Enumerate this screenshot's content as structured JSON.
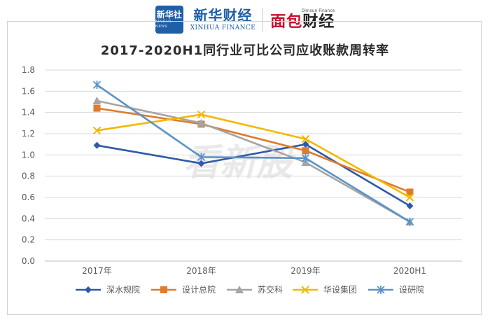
{
  "header": {
    "xinhua_badge_cn": "新华社",
    "xinhua_badge_en": "XINHUA NEWS",
    "xinhua_finance_cn": "新华财经",
    "xinhua_finance_en": "XINHUA FINANCE",
    "db_en": "Dimsun Finance",
    "db_cn_prefix": "面包",
    "db_cn_suffix": "财经"
  },
  "watermark": "看新股",
  "colors": {
    "深水规院": "#2e5aa8",
    "设计总院": "#e07a2c",
    "苏交科": "#a5a5a5",
    "华设集团": "#f2b800",
    "设研院": "#5b93c8"
  },
  "chart_data": {
    "type": "line",
    "title": "2017-2020H1同行业可比公司应收账款周转率",
    "categories": [
      "2017年",
      "2018年",
      "2019年",
      "2020H1"
    ],
    "ylim": [
      0.0,
      1.8
    ],
    "yticks": [
      "0.0",
      "0.2",
      "0.4",
      "0.6",
      "0.8",
      "1.0",
      "1.2",
      "1.4",
      "1.6",
      "1.8"
    ],
    "grid": true,
    "legend_position": "bottom",
    "series": [
      {
        "name": "深水规院",
        "values": [
          1.09,
          0.92,
          1.1,
          0.52
        ],
        "marker": "diamond"
      },
      {
        "name": "设计总院",
        "values": [
          1.44,
          1.29,
          1.04,
          0.65
        ],
        "marker": "square"
      },
      {
        "name": "苏交科",
        "values": [
          1.51,
          1.3,
          0.93,
          0.37
        ],
        "marker": "triangle"
      },
      {
        "name": "华设集团",
        "values": [
          1.23,
          1.38,
          1.15,
          0.6
        ],
        "marker": "x"
      },
      {
        "name": "设研院",
        "values": [
          1.66,
          0.98,
          0.97,
          0.37
        ],
        "marker": "star"
      }
    ]
  }
}
